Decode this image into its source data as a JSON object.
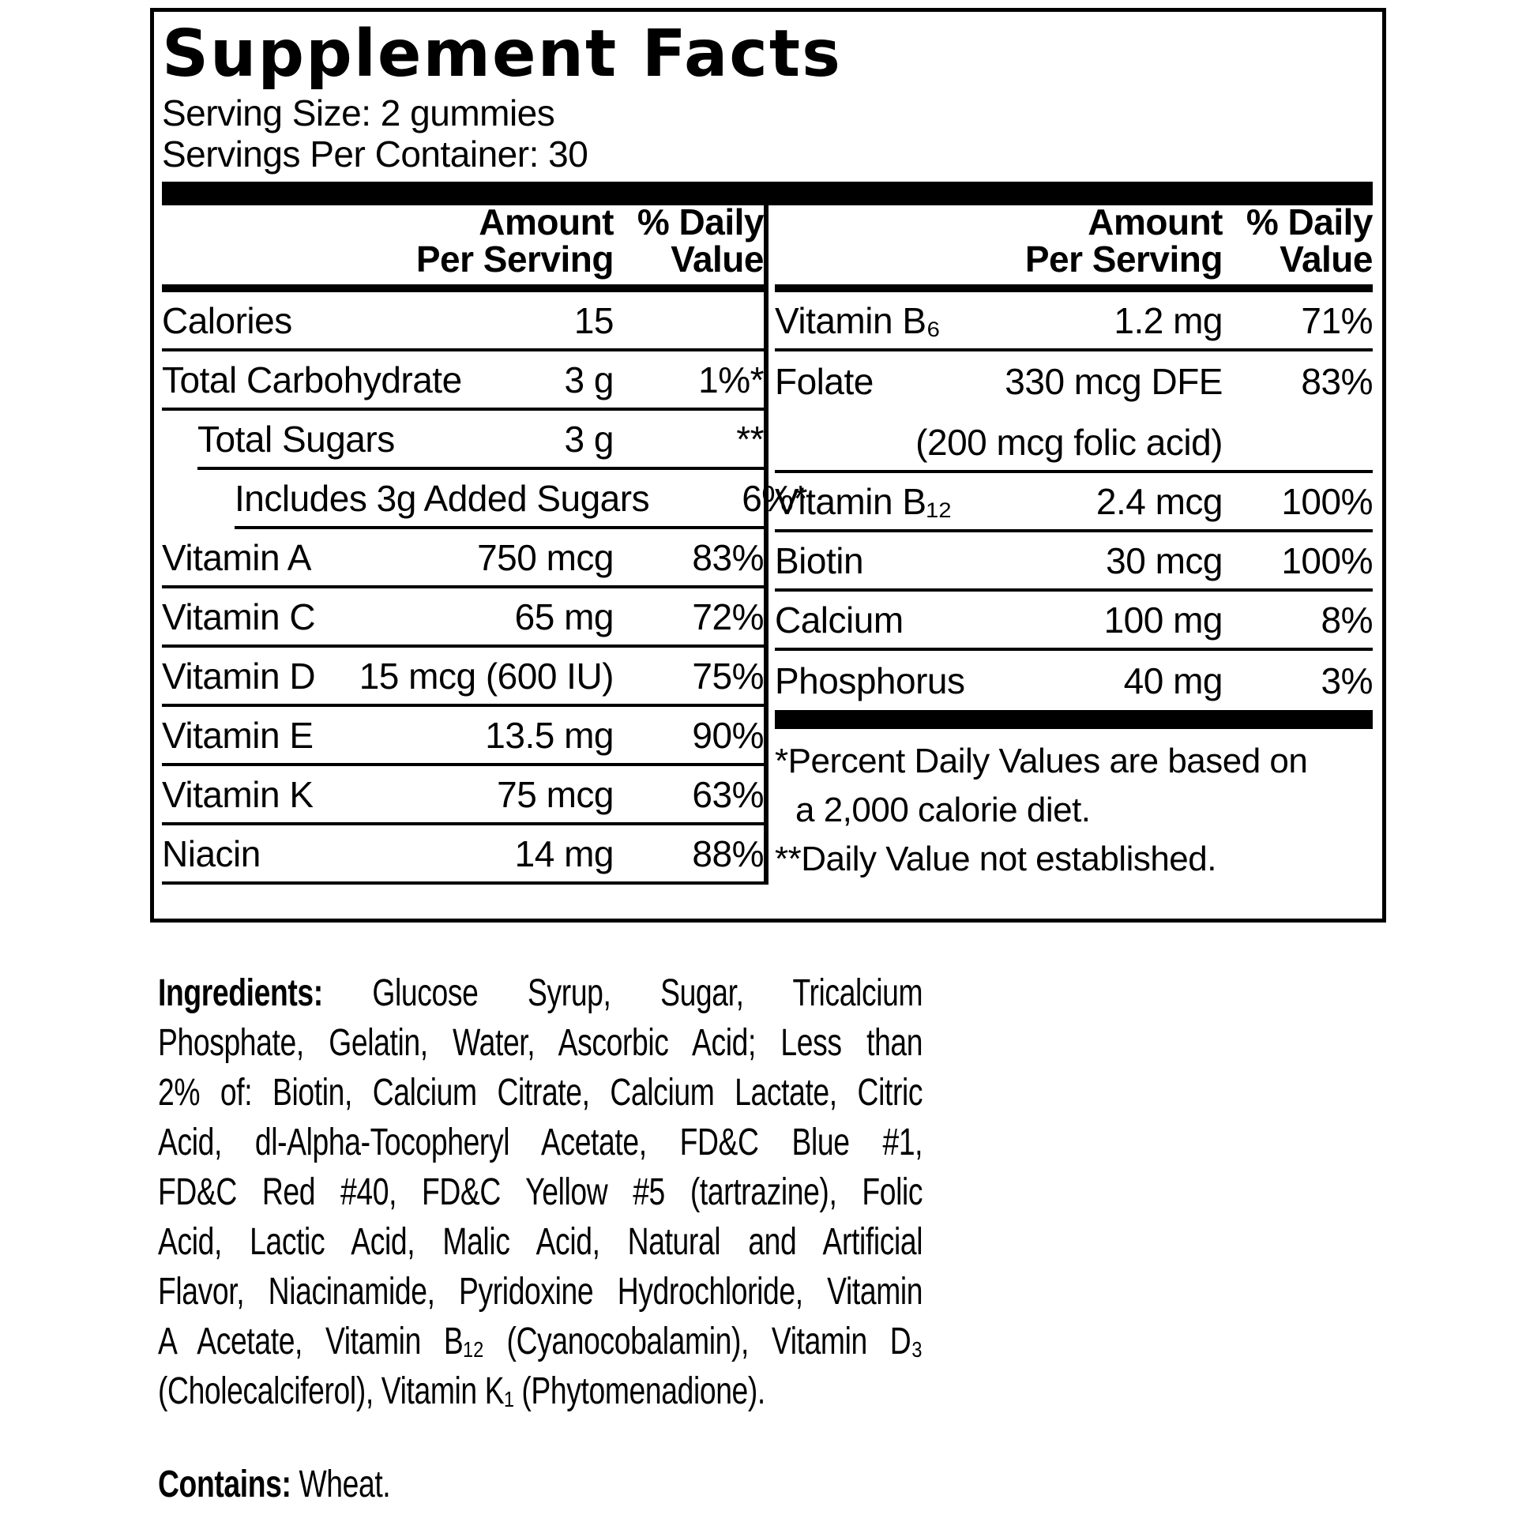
{
  "title": "Supplement Facts",
  "serving": {
    "size_label": "Serving Size: 2 gummies",
    "per_container": "Servings Per Container: 30"
  },
  "table": {
    "header": {
      "amount_line1": "Amount",
      "amount_line2": "Per Serving",
      "dv_line1": "% Daily",
      "dv_line2": "Value"
    },
    "left_rows": [
      {
        "label": "Calories",
        "amount": "15",
        "dv": ""
      },
      {
        "label": "Total Carbohydrate",
        "amount": "3 g",
        "dv": "1%*"
      },
      {
        "label": "Total Sugars",
        "amount": "3 g",
        "dv": "**"
      },
      {
        "label": "Includes 3g Added Sugars",
        "amount": "",
        "dv": "6%*"
      },
      {
        "label": "Vitamin A",
        "amount": "750 mcg",
        "dv": "83%"
      },
      {
        "label": "Vitamin C",
        "amount": "65 mg",
        "dv": "72%"
      },
      {
        "label": "Vitamin D",
        "amount": "15 mcg (600 IU)",
        "dv": "75%"
      },
      {
        "label": "Vitamin E",
        "amount": "13.5 mg",
        "dv": "90%"
      },
      {
        "label": "Vitamin K",
        "amount": "75 mcg",
        "dv": "63%"
      },
      {
        "label": "Niacin",
        "amount": "14 mg",
        "dv": "88%"
      }
    ],
    "right_rows": [
      {
        "label": "Vitamin B₆",
        "amount": "1.2 mg",
        "dv": "71%"
      },
      {
        "label": "Folate",
        "amount": "330 mcg DFE",
        "dv": "83%",
        "amount_note": "(200 mcg folic acid)"
      },
      {
        "label": "Vitamin B₁₂",
        "amount": "2.4 mcg",
        "dv": "100%"
      },
      {
        "label": "Biotin",
        "amount": "30 mcg",
        "dv": "100%"
      },
      {
        "label": "Calcium",
        "amount": "100 mg",
        "dv": "8%"
      },
      {
        "label": "Phosphorus",
        "amount": "40 mg",
        "dv": "3%"
      }
    ],
    "footnotes": [
      "*Percent Daily Values are based on",
      "a 2,000 calorie diet.",
      "**Daily Value not established."
    ]
  },
  "ingredients": {
    "label": "Ingredients:",
    "lines": [
      "Glucose Syrup, Sugar, Tricalcium",
      "Phosphate, Gelatin, Water, Ascorbic Acid; Less than",
      "2% of: Biotin, Calcium Citrate, Calcium Lactate, Citric",
      "Acid, dl-Alpha-Tocopheryl Acetate, FD&C Blue #1,",
      "FD&C Red #40, FD&C Yellow #5 (tartrazine), Folic",
      "Acid, Lactic Acid, Malic Acid, Natural and Artificial",
      "Flavor, Niacinamide, Pyridoxine Hydrochloride, Vitamin",
      "A Acetate, Vitamin B₁₂ (Cyanocobalamin), Vitamin D₃",
      "(Cholecalciferol), Vitamin K₁ (Phytomenadione)."
    ]
  },
  "contains": {
    "label": "Contains:",
    "value": "Wheat."
  },
  "colors": {
    "ink": "#000000",
    "paper": "#ffffff"
  }
}
